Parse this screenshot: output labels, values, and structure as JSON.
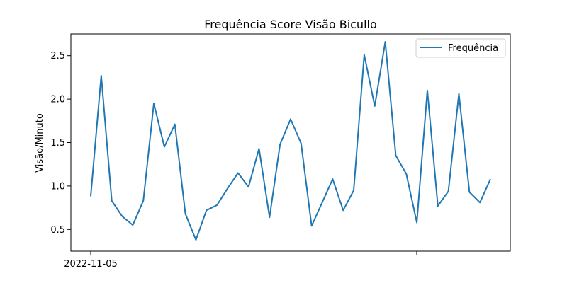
{
  "chart_data": {
    "type": "line",
    "title": "Frequência Score Visão Bicullo",
    "ylabel": "Visão/Minuto",
    "xlabel": "",
    "ylim": [
      0.25,
      2.75
    ],
    "yticks": [
      0.5,
      1.0,
      1.5,
      2.0,
      2.5
    ],
    "ytick_labels": [
      "0.5",
      "1.0",
      "1.5",
      "2.0",
      "2.5"
    ],
    "xtick_labels": [
      "2022-11-05",
      ""
    ],
    "legend_position": "upper right",
    "grid": false,
    "series": [
      {
        "name": "Frequência",
        "color": "#1f77b4",
        "values": [
          0.88,
          2.27,
          0.83,
          0.65,
          0.55,
          0.83,
          1.95,
          1.45,
          1.71,
          0.68,
          0.38,
          0.72,
          0.78,
          0.97,
          1.15,
          0.99,
          1.43,
          0.64,
          1.48,
          1.77,
          1.49,
          0.54,
          0.81,
          1.08,
          0.72,
          0.95,
          2.51,
          1.92,
          2.66,
          1.35,
          1.14,
          0.58,
          2.1,
          0.77,
          0.94,
          2.06,
          0.93,
          0.81,
          1.08
        ]
      }
    ]
  }
}
